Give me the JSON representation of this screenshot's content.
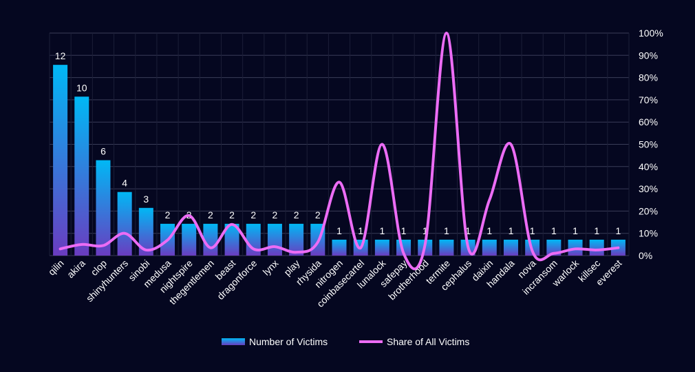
{
  "chart_data": {
    "type": "bar",
    "title": "",
    "xlabel": "",
    "ylabel": "",
    "categories": [
      "qilin",
      "akira",
      "clop",
      "shinyhunters",
      "sinobi",
      "medusa",
      "nightspire",
      "thegentlemen",
      "beast",
      "dragonforce",
      "lynx",
      "play",
      "rhysida",
      "nitrogen",
      "coinbasecartel",
      "lunalock",
      "safepay",
      "brotherhood",
      "termite",
      "cephalus",
      "daixin",
      "handala",
      "nova",
      "incransom",
      "warlock",
      "killsec",
      "everest"
    ],
    "series": [
      {
        "name": "Number of Victims",
        "type": "bar",
        "axis": "left",
        "values": [
          12,
          10,
          6,
          4,
          3,
          2,
          2,
          2,
          2,
          2,
          2,
          2,
          2,
          1,
          1,
          1,
          1,
          1,
          1,
          1,
          1,
          1,
          1,
          1,
          1,
          1,
          1
        ]
      },
      {
        "name": "Share of All Victims",
        "type": "line",
        "axis": "right",
        "values": [
          0.03,
          0.05,
          0.045,
          0.1,
          0.025,
          0.07,
          0.18,
          0.035,
          0.14,
          0.03,
          0.04,
          0.015,
          0.06,
          0.33,
          0.035,
          0.5,
          0.01,
          0.05,
          1.0,
          0.04,
          0.25,
          0.5,
          0.02,
          0.01,
          0.03,
          0.025,
          0.035
        ]
      }
    ],
    "ylim": [
      0,
      14
    ],
    "y2lim": [
      0,
      1
    ],
    "y2ticks": [
      "0%",
      "10%",
      "20%",
      "30%",
      "40%",
      "50%",
      "60%",
      "70%",
      "80%",
      "90%",
      "100%"
    ],
    "grid": true,
    "legend": "bottom-center",
    "colors": {
      "background": "#050720",
      "bar_top": "#00b8f5",
      "bar_bottom": "#6a3cc0",
      "line": "#ec6cf5",
      "grid": "#3a3d58",
      "text": "#ffffff"
    }
  }
}
